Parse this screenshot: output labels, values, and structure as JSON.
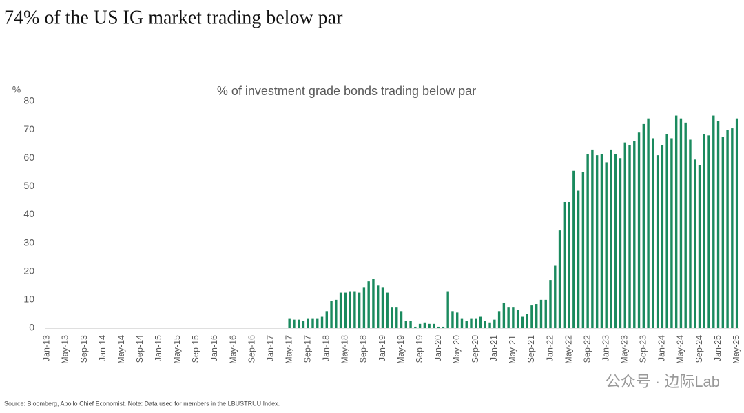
{
  "chart_data": {
    "type": "bar",
    "title": "74% of the US IG market trading below par",
    "subtitle": "% of investment grade bonds trading below par",
    "y_axis_label": "%",
    "source": "Source: Bloomberg, Apollo Chief Economist. Note: Data used for members in the LBUSTRUU Index.",
    "watermark": "公众号 · 边际Lab",
    "color": "#1a8a5e",
    "ylim": [
      0,
      80
    ],
    "yticks": [
      0,
      10,
      20,
      30,
      40,
      50,
      60,
      70,
      80
    ],
    "categories": [
      "Jan-13",
      null,
      null,
      null,
      "May-13",
      null,
      null,
      null,
      "Sep-13",
      null,
      null,
      null,
      "Jan-14",
      null,
      null,
      null,
      "May-14",
      null,
      null,
      null,
      "Sep-14",
      null,
      null,
      null,
      "Jan-15",
      null,
      null,
      null,
      "May-15",
      null,
      null,
      null,
      "Sep-15",
      null,
      null,
      null,
      "Jan-16",
      null,
      null,
      null,
      "May-16",
      null,
      null,
      null,
      "Sep-16",
      null,
      null,
      null,
      "Jan-17",
      null,
      null,
      null,
      "May-17",
      null,
      null,
      null,
      "Sep-17",
      null,
      null,
      null,
      "Jan-18",
      null,
      null,
      null,
      "May-18",
      null,
      null,
      null,
      "Sep-18",
      null,
      null,
      null,
      "Jan-19",
      null,
      null,
      null,
      "May-19",
      null,
      null,
      null,
      "Sep-19",
      null,
      null,
      null,
      "Jan-20",
      null,
      null,
      null,
      "May-20",
      null,
      null,
      null,
      "Sep-20",
      null,
      null,
      null,
      "Jan-21",
      null,
      null,
      null,
      "May-21",
      null,
      null,
      null,
      "Sep-21",
      null,
      null,
      null,
      "Jan-22",
      null,
      null,
      null,
      "May-22",
      null,
      null,
      null,
      "Sep-22",
      null,
      null,
      null,
      "Jan-23",
      null,
      null,
      null,
      "May-23",
      null,
      null,
      null,
      "Sep-23",
      null,
      null,
      null,
      "Jan-24",
      null,
      null,
      null,
      "May-24",
      null,
      null,
      null,
      "Sep-24",
      null,
      null,
      null,
      "Jan-25",
      null,
      null,
      null,
      "May-25"
    ],
    "values": [
      null,
      null,
      null,
      null,
      null,
      null,
      null,
      null,
      null,
      null,
      null,
      null,
      null,
      null,
      null,
      null,
      null,
      null,
      null,
      null,
      null,
      null,
      null,
      null,
      null,
      null,
      null,
      null,
      null,
      null,
      null,
      null,
      null,
      null,
      null,
      null,
      null,
      null,
      null,
      null,
      null,
      null,
      null,
      null,
      null,
      null,
      null,
      null,
      null,
      null,
      null,
      null,
      3.5,
      3,
      3,
      2.5,
      3.5,
      3.5,
      3.5,
      4,
      6,
      9.5,
      10,
      12.5,
      12.5,
      13,
      13,
      12.5,
      14.5,
      16.5,
      17.5,
      15,
      14.5,
      12.5,
      7.5,
      7.5,
      6,
      2.5,
      2.5,
      0.5,
      1.5,
      2,
      1.5,
      1.5,
      0.5,
      0.5,
      13,
      6,
      5.5,
      3.5,
      2.5,
      3.5,
      3.5,
      4,
      2.5,
      2,
      3,
      6,
      9,
      7.5,
      7.5,
      6.5,
      4,
      5,
      8,
      8.5,
      10,
      10,
      17,
      22,
      34.5,
      44.5,
      44.5,
      55.5,
      48.5,
      55,
      61.5,
      63,
      61,
      61.5,
      58.5,
      63,
      61.5,
      60,
      65.5,
      64.5,
      66,
      69,
      72,
      74,
      67,
      61,
      64.5,
      68.5,
      67,
      75,
      74,
      72.5,
      66.5,
      59.5,
      57.5,
      68.5,
      68,
      75,
      73,
      67.5,
      70,
      70.5,
      74
    ]
  }
}
